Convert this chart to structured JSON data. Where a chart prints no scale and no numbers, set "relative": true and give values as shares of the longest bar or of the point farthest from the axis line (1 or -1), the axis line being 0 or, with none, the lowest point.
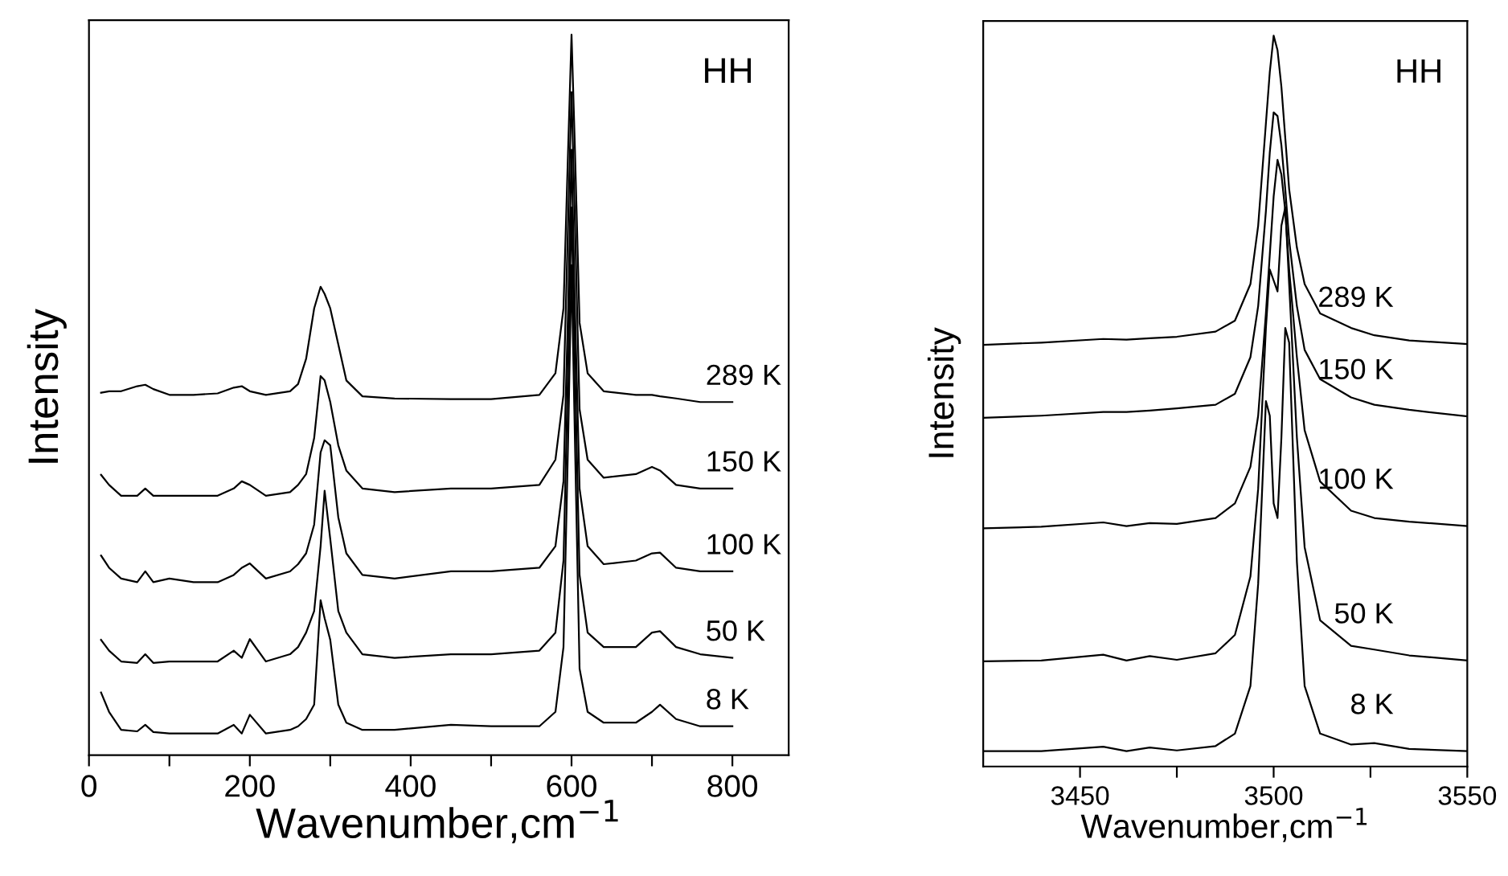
{
  "chart_data": [
    {
      "type": "line",
      "relative": true,
      "xlabel": "Wavenumber,cm$^{−1}$",
      "ylabel": "Intensity",
      "annotations": [
        "HH"
      ],
      "tick_labels": "x",
      "xlim": [
        0,
        870
      ],
      "xticks": [
        0,
        {
          "value": 100,
          "label": null
        },
        200,
        {
          "value": 300,
          "label": null
        },
        400,
        {
          "value": 500,
          "label": null
        },
        600,
        {
          "value": 700,
          "label": null
        },
        800
      ],
      "x": [
        15,
        25,
        40,
        60,
        70,
        80,
        100,
        130,
        160,
        180,
        190,
        200,
        220,
        250,
        260,
        270,
        280,
        288,
        293,
        300,
        310,
        320,
        340,
        380,
        450,
        500,
        560,
        580,
        590,
        596,
        600,
        604,
        610,
        620,
        640,
        680,
        700,
        710,
        730,
        760,
        800
      ],
      "series": [
        {
          "name": "8 K",
          "color": "#000000",
          "values": [
            0.087,
            0.06,
            0.035,
            0.033,
            0.042,
            0.032,
            0.03,
            0.03,
            0.03,
            0.042,
            0.03,
            0.056,
            0.03,
            0.035,
            0.04,
            0.05,
            0.07,
            0.215,
            0.19,
            0.16,
            0.07,
            0.045,
            0.035,
            0.035,
            0.042,
            0.04,
            0.04,
            0.06,
            0.15,
            0.45,
            0.68,
            0.45,
            0.12,
            0.06,
            0.045,
            0.045,
            0.06,
            0.07,
            0.05,
            0.04,
            0.04
          ]
        },
        {
          "name": "50 K",
          "color": "#000000",
          "values": [
            0.16,
            0.145,
            0.13,
            0.128,
            0.14,
            0.128,
            0.13,
            0.13,
            0.13,
            0.145,
            0.135,
            0.161,
            0.13,
            0.14,
            0.15,
            0.17,
            0.2,
            0.29,
            0.367,
            0.3,
            0.2,
            0.17,
            0.14,
            0.135,
            0.14,
            0.14,
            0.145,
            0.17,
            0.27,
            0.55,
            0.76,
            0.55,
            0.25,
            0.17,
            0.15,
            0.15,
            0.17,
            0.172,
            0.15,
            0.14,
            0.135
          ]
        },
        {
          "name": "100 K",
          "color": "#000000",
          "values": [
            0.277,
            0.26,
            0.245,
            0.24,
            0.255,
            0.24,
            0.245,
            0.24,
            0.24,
            0.25,
            0.26,
            0.266,
            0.245,
            0.255,
            0.265,
            0.28,
            0.32,
            0.42,
            0.437,
            0.43,
            0.33,
            0.28,
            0.25,
            0.245,
            0.255,
            0.255,
            0.26,
            0.29,
            0.38,
            0.63,
            0.84,
            0.63,
            0.37,
            0.29,
            0.265,
            0.27,
            0.28,
            0.281,
            0.26,
            0.255,
            0.255
          ]
        },
        {
          "name": "150 K",
          "color": "#000000",
          "values": [
            0.389,
            0.375,
            0.36,
            0.36,
            0.37,
            0.36,
            0.36,
            0.36,
            0.36,
            0.37,
            0.38,
            0.375,
            0.36,
            0.365,
            0.375,
            0.39,
            0.44,
            0.526,
            0.52,
            0.49,
            0.43,
            0.395,
            0.37,
            0.365,
            0.37,
            0.37,
            0.375,
            0.41,
            0.5,
            0.75,
            0.92,
            0.75,
            0.48,
            0.41,
            0.385,
            0.39,
            0.4,
            0.395,
            0.375,
            0.37,
            0.37
          ]
        },
        {
          "name": "289 K",
          "color": "#000000",
          "values": [
            0.503,
            0.505,
            0.505,
            0.512,
            0.514,
            0.508,
            0.5,
            0.5,
            0.502,
            0.51,
            0.512,
            0.505,
            0.5,
            0.505,
            0.515,
            0.55,
            0.62,
            0.65,
            0.64,
            0.62,
            0.57,
            0.52,
            0.498,
            0.495,
            0.494,
            0.494,
            0.5,
            0.53,
            0.62,
            0.85,
            1.0,
            0.85,
            0.6,
            0.53,
            0.505,
            0.5,
            0.5,
            0.498,
            0.495,
            0.49,
            0.49
          ]
        }
      ]
    },
    {
      "type": "line",
      "relative": true,
      "xlabel": "Wavenumber,cm$^{−1}$",
      "ylabel": "Intensity",
      "annotations": [
        "HH"
      ],
      "tick_labels": "x",
      "xlim": [
        3425,
        3550
      ],
      "xticks": [
        3450,
        {
          "value": 3475,
          "label": null
        },
        3500,
        {
          "value": 3525,
          "label": null
        },
        3550
      ],
      "x": [
        3425,
        3440,
        3456,
        3462,
        3468,
        3475,
        3485,
        3490,
        3494,
        3496,
        3498,
        3499,
        3500,
        3501,
        3502,
        3503,
        3504,
        3506,
        3508,
        3512,
        3520,
        3526,
        3535,
        3550
      ],
      "series": [
        {
          "name": "8 K",
          "color": "#000000",
          "values": [
            0.021,
            0.021,
            0.027,
            0.021,
            0.026,
            0.022,
            0.028,
            0.045,
            0.11,
            0.25,
            0.5,
            0.48,
            0.36,
            0.34,
            0.45,
            0.6,
            0.58,
            0.28,
            0.11,
            0.045,
            0.03,
            0.032,
            0.024,
            0.021
          ]
        },
        {
          "name": "50 K",
          "color": "#000000",
          "values": [
            0.144,
            0.145,
            0.153,
            0.145,
            0.151,
            0.146,
            0.155,
            0.18,
            0.26,
            0.38,
            0.6,
            0.68,
            0.665,
            0.65,
            0.74,
            0.765,
            0.66,
            0.45,
            0.3,
            0.2,
            0.165,
            0.16,
            0.152,
            0.145
          ]
        },
        {
          "name": "100 K",
          "color": "#000000",
          "values": [
            0.326,
            0.328,
            0.334,
            0.329,
            0.333,
            0.332,
            0.34,
            0.36,
            0.41,
            0.48,
            0.62,
            0.7,
            0.78,
            0.83,
            0.81,
            0.76,
            0.68,
            0.56,
            0.46,
            0.39,
            0.35,
            0.34,
            0.335,
            0.329
          ]
        },
        {
          "name": "150 K",
          "color": "#000000",
          "values": [
            0.477,
            0.48,
            0.485,
            0.485,
            0.487,
            0.49,
            0.495,
            0.51,
            0.56,
            0.63,
            0.76,
            0.84,
            0.895,
            0.89,
            0.85,
            0.79,
            0.72,
            0.63,
            0.57,
            0.53,
            0.505,
            0.495,
            0.488,
            0.479
          ]
        },
        {
          "name": "289 K",
          "color": "#000000",
          "values": [
            0.577,
            0.58,
            0.585,
            0.584,
            0.586,
            0.588,
            0.595,
            0.61,
            0.66,
            0.74,
            0.88,
            0.95,
            1.0,
            0.98,
            0.93,
            0.86,
            0.79,
            0.71,
            0.66,
            0.62,
            0.6,
            0.59,
            0.583,
            0.578
          ]
        }
      ]
    }
  ]
}
